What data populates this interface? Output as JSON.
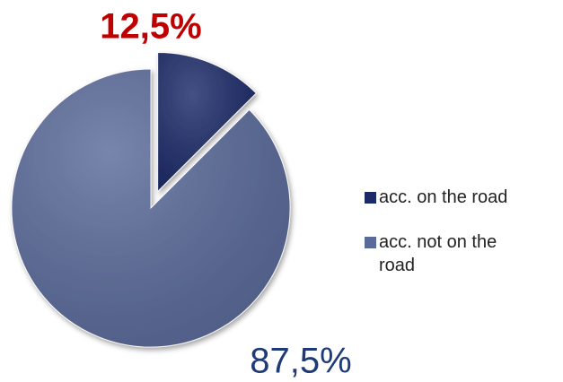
{
  "chart_data": {
    "type": "pie",
    "categories": [
      "acc. on the road",
      "acc. not on the road"
    ],
    "values": [
      12.5,
      87.5
    ],
    "value_labels": [
      "12,5%",
      "87,5%"
    ],
    "colors": [
      "#1c2a68",
      "#5a6a99"
    ],
    "label_colors": [
      "#c00000",
      "#1f3a78"
    ]
  }
}
